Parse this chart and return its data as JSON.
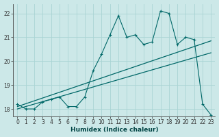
{
  "xlabel": "Humidex (Indice chaleur)",
  "bg_color": "#cce8e8",
  "grid_color": "#aad4d4",
  "line_color": "#006868",
  "xlim": [
    -0.5,
    23.5
  ],
  "ylim": [
    17.7,
    22.4
  ],
  "yticks": [
    18,
    19,
    20,
    21,
    22
  ],
  "xticks": [
    0,
    1,
    2,
    3,
    4,
    5,
    6,
    7,
    8,
    9,
    10,
    11,
    12,
    13,
    14,
    15,
    16,
    17,
    18,
    19,
    20,
    21,
    22,
    23
  ],
  "series1_x": [
    0,
    1,
    2,
    3,
    4,
    5,
    6,
    7,
    8,
    9,
    10,
    11,
    12,
    13,
    14,
    15,
    16,
    17,
    18,
    19,
    20,
    21,
    22,
    23
  ],
  "series1_y": [
    18.2,
    18.0,
    18.0,
    18.3,
    18.4,
    18.5,
    18.1,
    18.1,
    18.5,
    19.6,
    20.3,
    21.1,
    21.9,
    21.0,
    21.1,
    20.7,
    20.8,
    22.1,
    22.0,
    20.7,
    21.0,
    20.9,
    18.2,
    17.75
  ],
  "series2_x": [
    0,
    23
  ],
  "series2_y": [
    18.1,
    20.85
  ],
  "series3_x": [
    0,
    23
  ],
  "series3_y": [
    18.0,
    20.35
  ]
}
